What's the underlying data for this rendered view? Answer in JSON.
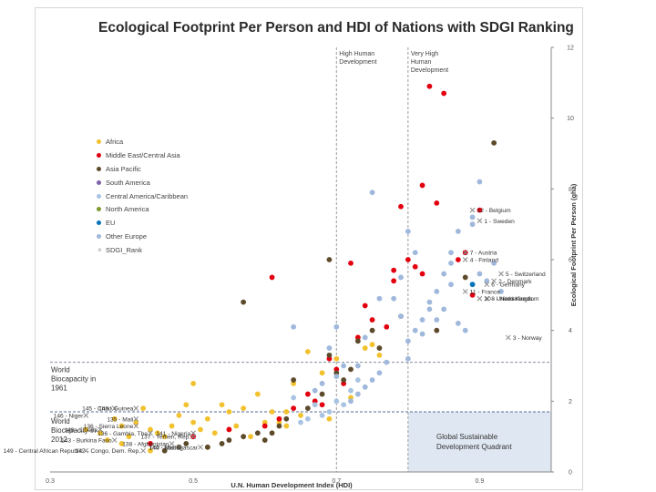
{
  "chart_data": {
    "type": "scatter",
    "title": "Ecological Footprint Per Person and HDI of Nations with SDGI Ranking",
    "xlabel": "U.N. Human Development Index (HDI)",
    "ylabel": "Ecological Footprint Per Person (gha)",
    "xlim": [
      0.3,
      1.0
    ],
    "ylim": [
      0,
      12
    ],
    "x_ticks": [
      "0.3",
      "0.5",
      "0.7",
      "0.9"
    ],
    "y_ticks": [
      "0",
      "2",
      "4",
      "6",
      "8",
      "10",
      "12"
    ],
    "grid": false,
    "legend_position": "left",
    "colors": {
      "Africa": "#f2c12e",
      "Middle East/Central Asia": "#e3000f",
      "Asia Pacific": "#5c4a2a",
      "South America": "#7d62a8",
      "Central America/Caribbean": "#a9c4e2",
      "North America": "#7f9b2f",
      "EU": "#0072bc",
      "Other Europe": "#9fb8dc",
      "SDGI_Rank": "#999999"
    },
    "legend": [
      "Africa",
      "Middle East/Central Asia",
      "Asia Pacific",
      "South America",
      "Central America/Caribbean",
      "North America",
      "EU",
      "Other Europe",
      "SDGI_Rank"
    ],
    "thresholds": {
      "high_human_development": 0.7,
      "very_high_human_development": 0.8,
      "world_biocapacity_1961": 3.1,
      "world_biocapacity_2012": 1.7
    },
    "annotations": {
      "high_dev": "High Human Development",
      "very_high_dev": "Very High Human Development",
      "biocap_1961": "World Biocapacity in 1961",
      "biocap_2012": "World Biocapacity in 2012",
      "quadrant": "Global Sustainable Development Quadrant"
    },
    "series": [
      {
        "name": "Africa",
        "points": [
          [
            0.35,
            1.2
          ],
          [
            0.37,
            1.1
          ],
          [
            0.39,
            1.5
          ],
          [
            0.4,
            1.3
          ],
          [
            0.41,
            1.0
          ],
          [
            0.42,
            1.4
          ],
          [
            0.43,
            1.8
          ],
          [
            0.44,
            1.2
          ],
          [
            0.45,
            1.1
          ],
          [
            0.46,
            1.0
          ],
          [
            0.47,
            1.3
          ],
          [
            0.48,
            1.6
          ],
          [
            0.49,
            1.9
          ],
          [
            0.5,
            1.4
          ],
          [
            0.5,
            2.5
          ],
          [
            0.51,
            1.2
          ],
          [
            0.52,
            1.5
          ],
          [
            0.53,
            1.1
          ],
          [
            0.54,
            1.9
          ],
          [
            0.55,
            1.7
          ],
          [
            0.56,
            1.3
          ],
          [
            0.57,
            1.8
          ],
          [
            0.58,
            1.0
          ],
          [
            0.59,
            2.2
          ],
          [
            0.6,
            1.4
          ],
          [
            0.61,
            1.7
          ],
          [
            0.62,
            1.4
          ],
          [
            0.63,
            1.3
          ],
          [
            0.64,
            2.5
          ],
          [
            0.65,
            1.6
          ],
          [
            0.66,
            3.4
          ],
          [
            0.67,
            1.9
          ],
          [
            0.68,
            2.8
          ],
          [
            0.69,
            1.5
          ],
          [
            0.7,
            3.2
          ],
          [
            0.72,
            2.1
          ],
          [
            0.73,
            3.8
          ],
          [
            0.74,
            3.5
          ],
          [
            0.75,
            3.6
          ],
          [
            0.76,
            3.3
          ],
          [
            0.38,
            0.9
          ],
          [
            0.4,
            0.8
          ],
          [
            0.44,
            0.6
          ],
          [
            0.52,
            0.7
          ],
          [
            0.55,
            1.2
          ],
          [
            0.63,
            1.7
          ]
        ]
      },
      {
        "name": "Middle East/Central Asia",
        "points": [
          [
            0.83,
            10.9
          ],
          [
            0.85,
            10.7
          ],
          [
            0.82,
            8.1
          ],
          [
            0.84,
            7.6
          ],
          [
            0.79,
            7.5
          ],
          [
            0.9,
            7.4
          ],
          [
            0.8,
            6.0
          ],
          [
            0.81,
            5.8
          ],
          [
            0.78,
            5.7
          ],
          [
            0.78,
            5.4
          ],
          [
            0.82,
            5.6
          ],
          [
            0.87,
            6.0
          ],
          [
            0.88,
            6.2
          ],
          [
            0.89,
            5.0
          ],
          [
            0.72,
            5.9
          ],
          [
            0.61,
            5.5
          ],
          [
            0.74,
            4.7
          ],
          [
            0.77,
            4.1
          ],
          [
            0.75,
            4.3
          ],
          [
            0.7,
            2.9
          ],
          [
            0.67,
            2.0
          ],
          [
            0.66,
            2.2
          ],
          [
            0.64,
            1.8
          ],
          [
            0.62,
            1.5
          ],
          [
            0.6,
            1.3
          ],
          [
            0.69,
            3.2
          ],
          [
            0.71,
            2.5
          ],
          [
            0.68,
            1.9
          ],
          [
            0.73,
            3.8
          ],
          [
            0.55,
            1.2
          ],
          [
            0.5,
            1.0
          ],
          [
            0.44,
            0.8
          ]
        ]
      },
      {
        "name": "Asia Pacific",
        "points": [
          [
            0.92,
            9.3
          ],
          [
            0.69,
            6.0
          ],
          [
            0.57,
            4.8
          ],
          [
            0.88,
            5.5
          ],
          [
            0.84,
            4.0
          ],
          [
            0.79,
            4.4
          ],
          [
            0.76,
            3.5
          ],
          [
            0.73,
            3.7
          ],
          [
            0.72,
            2.9
          ],
          [
            0.71,
            2.6
          ],
          [
            0.7,
            2.8
          ],
          [
            0.68,
            2.2
          ],
          [
            0.66,
            1.8
          ],
          [
            0.63,
            1.5
          ],
          [
            0.62,
            1.3
          ],
          [
            0.61,
            1.1
          ],
          [
            0.59,
            1.1
          ],
          [
            0.57,
            1.0
          ],
          [
            0.55,
            0.9
          ],
          [
            0.54,
            0.8
          ],
          [
            0.52,
            0.7
          ],
          [
            0.49,
            0.8
          ],
          [
            0.48,
            0.7
          ],
          [
            0.46,
            0.6
          ],
          [
            0.75,
            4.0
          ],
          [
            0.64,
            2.6
          ],
          [
            0.69,
            3.3
          ],
          [
            0.6,
            0.9
          ]
        ]
      },
      {
        "name": "Central America/Caribbean",
        "points": [
          [
            0.72,
            2.3
          ],
          [
            0.7,
            2.0
          ],
          [
            0.69,
            1.7
          ],
          [
            0.68,
            1.6
          ],
          [
            0.67,
            1.9
          ],
          [
            0.66,
            1.5
          ],
          [
            0.65,
            1.4
          ],
          [
            0.64,
            2.1
          ],
          [
            0.71,
            1.9
          ],
          [
            0.73,
            2.6
          ]
        ]
      },
      {
        "name": "Other Europe",
        "points": [
          [
            0.9,
            8.2
          ],
          [
            0.89,
            7.2
          ],
          [
            0.89,
            7.0
          ],
          [
            0.87,
            6.8
          ],
          [
            0.86,
            6.2
          ],
          [
            0.86,
            5.9
          ],
          [
            0.85,
            5.6
          ],
          [
            0.84,
            5.1
          ],
          [
            0.83,
            4.8
          ],
          [
            0.83,
            4.6
          ],
          [
            0.82,
            4.3
          ],
          [
            0.81,
            4.0
          ],
          [
            0.8,
            3.7
          ],
          [
            0.8,
            3.2
          ],
          [
            0.79,
            5.5
          ],
          [
            0.78,
            4.9
          ],
          [
            0.77,
            3.1
          ],
          [
            0.76,
            2.8
          ],
          [
            0.75,
            2.6
          ],
          [
            0.74,
            2.4
          ],
          [
            0.73,
            2.2
          ],
          [
            0.72,
            2.0
          ],
          [
            0.71,
            3.0
          ],
          [
            0.7,
            2.7
          ],
          [
            0.69,
            3.5
          ],
          [
            0.68,
            2.5
          ],
          [
            0.67,
            2.3
          ],
          [
            0.64,
            4.1
          ],
          [
            0.75,
            7.9
          ],
          [
            0.86,
            5.3
          ],
          [
            0.91,
            5.4
          ],
          [
            0.92,
            5.9
          ],
          [
            0.9,
            5.6
          ],
          [
            0.87,
            4.2
          ],
          [
            0.85,
            4.6
          ],
          [
            0.93,
            5.1
          ],
          [
            0.84,
            4.3
          ],
          [
            0.76,
            4.9
          ],
          [
            0.82,
            3.9
          ],
          [
            0.7,
            4.1
          ],
          [
            0.8,
            6.8
          ],
          [
            0.81,
            6.2
          ],
          [
            0.88,
            4.0
          ],
          [
            0.79,
            4.4
          ],
          [
            0.74,
            3.8
          ],
          [
            0.73,
            3.0
          ]
        ]
      },
      {
        "name": "EU",
        "points": [
          [
            0.89,
            5.3
          ]
        ]
      }
    ],
    "ranked": [
      {
        "label": "12 - Belgium",
        "x": 0.89,
        "y": 7.4
      },
      {
        "label": "1 - Sweden",
        "x": 0.9,
        "y": 7.1
      },
      {
        "label": "7 - Austria",
        "x": 0.88,
        "y": 6.2
      },
      {
        "label": "4 - Finland",
        "x": 0.88,
        "y": 6.0
      },
      {
        "label": "5 - Switzerland",
        "x": 0.93,
        "y": 5.6
      },
      {
        "label": "2 - Denmark",
        "x": 0.92,
        "y": 5.4
      },
      {
        "label": "6 - Germany",
        "x": 0.91,
        "y": 5.3
      },
      {
        "label": "11 - France",
        "x": 0.88,
        "y": 5.1
      },
      {
        "label": "8 - Netherlands",
        "x": 0.91,
        "y": 4.9
      },
      {
        "label": "10 - United Kingdom",
        "x": 0.9,
        "y": 4.9
      },
      {
        "label": "3 - Norway",
        "x": 0.94,
        "y": 3.8
      },
      {
        "label": "145 - Chad",
        "x": 0.39,
        "y": 1.8
      },
      {
        "label": "146 - Niger",
        "x": 0.35,
        "y": 1.6
      },
      {
        "label": "140 - Guinea",
        "x": 0.42,
        "y": 1.8
      },
      {
        "label": "135 - Mali",
        "x": 0.42,
        "y": 1.5
      },
      {
        "label": "136 - Sierra Leone",
        "x": 0.42,
        "y": 1.3
      },
      {
        "label": "148 - Liberia",
        "x": 0.37,
        "y": 1.2
      },
      {
        "label": "136 - Gambia, The",
        "x": 0.44,
        "y": 1.1
      },
      {
        "label": "141 - Nigeria",
        "x": 0.5,
        "y": 1.1
      },
      {
        "label": "137 - Yemen, Rep.",
        "x": 0.5,
        "y": 1.0
      },
      {
        "label": "143 - Burkina Faso",
        "x": 0.39,
        "y": 0.9
      },
      {
        "label": "138 - Afghanistan",
        "x": 0.47,
        "y": 0.8
      },
      {
        "label": "144 - Haiti",
        "x": 0.48,
        "y": 0.7
      },
      {
        "label": "140 - Madagascar",
        "x": 0.51,
        "y": 0.7
      },
      {
        "label": "147 - Congo, Dem. Rep.",
        "x": 0.43,
        "y": 0.6
      },
      {
        "label": "149 - Central African Republic",
        "x": 0.35,
        "y": 0.6
      }
    ]
  }
}
